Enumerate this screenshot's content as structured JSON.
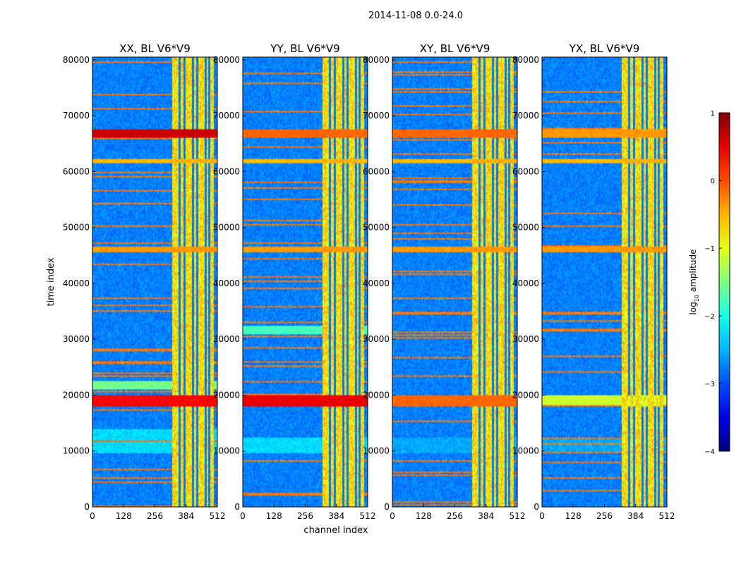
{
  "chart_data": {
    "type": "heatmap",
    "suptitle": "2014-11-08 0.0-24.0",
    "xlabel": "channel index",
    "ylabel": "time index",
    "colormap": "jet",
    "colorbar": {
      "label": "log10 amplitude",
      "label_base": "log",
      "label_sub": "10",
      "label_tail": " amplitude",
      "min": -4,
      "max": 1,
      "ticks": [
        1,
        0,
        -1,
        -2,
        -3,
        -4
      ],
      "tick_labels": [
        "1",
        "0",
        "−1",
        "−2",
        "−3",
        "−4"
      ]
    },
    "xlim": [
      0,
      512
    ],
    "ylim": [
      0,
      80500
    ],
    "x_ticks": [
      0,
      128,
      256,
      384,
      512
    ],
    "x_tick_labels": [
      "0",
      "128",
      "256",
      "384",
      "512"
    ],
    "y_ticks": [
      0,
      10000,
      20000,
      30000,
      40000,
      50000,
      60000,
      70000,
      80000
    ],
    "y_tick_labels": [
      "0",
      "10000",
      "20000",
      "30000",
      "40000",
      "50000",
      "60000",
      "70000",
      "80000"
    ],
    "panels": [
      {
        "title": "XX, BL V6*V9",
        "hot_rows": [
          [
            66000,
            67500,
            0.95
          ],
          [
            18000,
            20000,
            0.9
          ],
          [
            45500,
            46500,
            0.75
          ],
          [
            61500,
            62200,
            0.72
          ]
        ],
        "warm_bands": [
          [
            21000,
            22500,
            0.45
          ],
          [
            9500,
            14000,
            0.3
          ]
        ]
      },
      {
        "title": "YY, BL V6*V9",
        "hot_rows": [
          [
            66000,
            67500,
            0.8
          ],
          [
            18000,
            20000,
            0.92
          ],
          [
            45500,
            46500,
            0.75
          ],
          [
            61500,
            62200,
            0.72
          ]
        ],
        "warm_bands": [
          [
            31000,
            32500,
            0.4
          ],
          [
            9500,
            12500,
            0.3
          ]
        ]
      },
      {
        "title": "XY, BL V6*V9",
        "hot_rows": [
          [
            66000,
            67500,
            0.8
          ],
          [
            18000,
            20000,
            0.8
          ],
          [
            45500,
            46500,
            0.75
          ],
          [
            61500,
            62200,
            0.72
          ]
        ],
        "warm_bands": [
          [
            9500,
            12500,
            0.25
          ]
        ]
      },
      {
        "title": "YX, BL V6*V9",
        "hot_rows": [
          [
            66000,
            67500,
            0.75
          ],
          [
            18000,
            20000,
            0.6
          ],
          [
            45500,
            46500,
            0.75
          ],
          [
            61500,
            62200,
            0.72
          ]
        ],
        "warm_bands": [
          [
            9500,
            12500,
            0.25
          ]
        ]
      }
    ],
    "rfi_channel_band": [
      325,
      495
    ],
    "rfi_gap_channels": [
      356,
      375,
      410,
      428,
      462,
      478
    ]
  }
}
